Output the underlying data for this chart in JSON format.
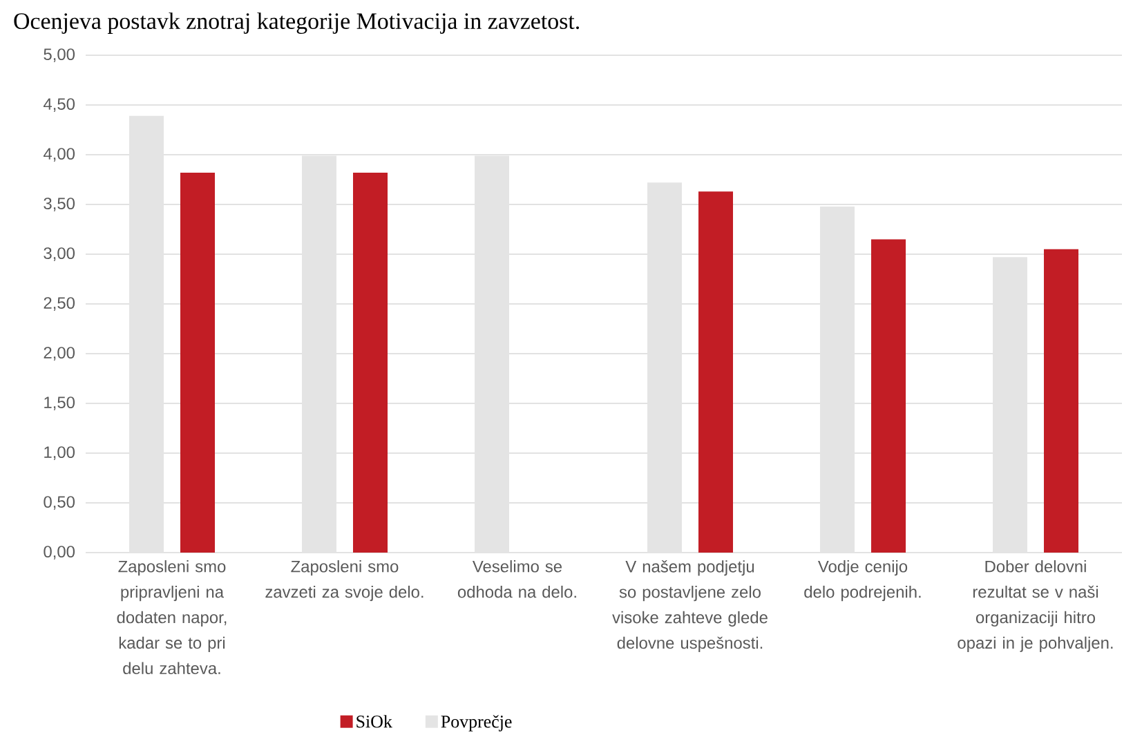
{
  "chart_data": {
    "type": "bar",
    "title": "Ocenjeva postavk znotraj kategorije Motivacija in zavzetost.",
    "categories": [
      "Zaposleni smo pripravljeni na dodaten napor, kadar se to pri delu zahteva.",
      "Zaposleni smo zavzeti za svoje delo.",
      "Veselimo se odhoda na delo.",
      "V našem podjetju so postavljene zelo visoke zahteve glede delovne uspešnosti.",
      "Vodje cenijo delo podrejenih.",
      "Dober delovni rezultat se v naši organizaciji hitro opazi in je pohvaljen."
    ],
    "series": [
      {
        "name": "Povprečje",
        "color": "#e4e4e4",
        "values": [
          4.39,
          3.99,
          3.99,
          3.72,
          3.48,
          2.97
        ]
      },
      {
        "name": "SiOk",
        "color": "#c21d25",
        "values": [
          3.82,
          3.82,
          null,
          3.63,
          3.15,
          3.05
        ]
      }
    ],
    "ylim": [
      0,
      5
    ],
    "yticks": [
      {
        "value": 0,
        "label": "0,00"
      },
      {
        "value": 0.5,
        "label": "0,50"
      },
      {
        "value": 1,
        "label": "1,00"
      },
      {
        "value": 1.5,
        "label": "1,50"
      },
      {
        "value": 2,
        "label": "2,00"
      },
      {
        "value": 2.5,
        "label": "2,50"
      },
      {
        "value": 3,
        "label": "3,00"
      },
      {
        "value": 3.5,
        "label": "3,50"
      },
      {
        "value": 4,
        "label": "4,00"
      },
      {
        "value": 4.5,
        "label": "4,50"
      },
      {
        "value": 5,
        "label": "5,00"
      }
    ],
    "grid": "y",
    "legend": "bottom"
  }
}
